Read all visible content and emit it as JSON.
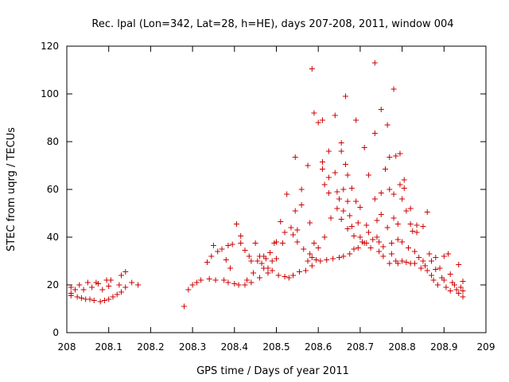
{
  "chart_data": {
    "type": "scatter",
    "title": "Rec. lpal (Lon=342, Lat=28, h=HE), days 207-208, 2011, window 004",
    "xlabel": "GPS time / Days of year 2011",
    "ylabel": "STEC from uqrg / TECUs",
    "xlim": [
      208,
      209
    ],
    "ylim": [
      0,
      120
    ],
    "x_ticks": [
      208,
      208.1,
      208.2,
      208.3,
      208.4,
      208.5,
      208.6,
      208.7,
      208.8,
      208.9,
      209
    ],
    "x_tick_labels": [
      "208",
      "208.1",
      "208.2",
      "208.3",
      "208.4",
      "208.5",
      "208.6",
      "208.7",
      "208.8",
      "208.9",
      "209"
    ],
    "y_ticks": [
      0,
      20,
      40,
      60,
      80,
      100,
      120
    ],
    "y_tick_labels": [
      "0",
      "20",
      "40",
      "60",
      "80",
      "100",
      "120"
    ],
    "marker": "+",
    "color": "#cc0000",
    "series": [
      {
        "name": "STEC",
        "points": [
          [
            208.01,
            19
          ],
          [
            208.01,
            16.5
          ],
          [
            208.01,
            15.5
          ],
          [
            208.02,
            18
          ],
          [
            208.025,
            15
          ],
          [
            208.03,
            20
          ],
          [
            208.035,
            14.5
          ],
          [
            208.04,
            18
          ],
          [
            208.045,
            14
          ],
          [
            208.05,
            21
          ],
          [
            208.055,
            14
          ],
          [
            208.06,
            19
          ],
          [
            208.065,
            13.5
          ],
          [
            208.07,
            21
          ],
          [
            208.075,
            20.5
          ],
          [
            208.08,
            13
          ],
          [
            208.085,
            18
          ],
          [
            208.09,
            13.5
          ],
          [
            208.095,
            22
          ],
          [
            208.1,
            14
          ],
          [
            208.1,
            19.5
          ],
          [
            208.105,
            22
          ],
          [
            208.11,
            15
          ],
          [
            208.12,
            16
          ],
          [
            208.125,
            20
          ],
          [
            208.13,
            17
          ],
          [
            208.13,
            24
          ],
          [
            208.14,
            19
          ],
          [
            208.14,
            25.5
          ],
          [
            208.155,
            21
          ],
          [
            208.17,
            20
          ],
          [
            208.28,
            11
          ],
          [
            208.29,
            18
          ],
          [
            208.3,
            20
          ],
          [
            208.31,
            21
          ],
          [
            208.32,
            22
          ],
          [
            208.335,
            29.5
          ],
          [
            208.34,
            22.5
          ],
          [
            208.345,
            32
          ],
          [
            208.35,
            36.5
          ],
          [
            208.355,
            22
          ],
          [
            208.36,
            34
          ],
          [
            208.37,
            35
          ],
          [
            208.375,
            22
          ],
          [
            208.38,
            30.5
          ],
          [
            208.385,
            21
          ],
          [
            208.385,
            36.5
          ],
          [
            208.39,
            27
          ],
          [
            208.395,
            37
          ],
          [
            208.4,
            20.5
          ],
          [
            208.405,
            45.5
          ],
          [
            208.41,
            20
          ],
          [
            208.415,
            37.5
          ],
          [
            208.415,
            40.5
          ],
          [
            208.425,
            34.5
          ],
          [
            208.425,
            20
          ],
          [
            208.43,
            22
          ],
          [
            208.435,
            32
          ],
          [
            208.44,
            30
          ],
          [
            208.44,
            21
          ],
          [
            208.445,
            25
          ],
          [
            208.45,
            37.5
          ],
          [
            208.455,
            30
          ],
          [
            208.46,
            32
          ],
          [
            208.46,
            23
          ],
          [
            208.465,
            29
          ],
          [
            208.47,
            32
          ],
          [
            208.47,
            27
          ],
          [
            208.475,
            31
          ],
          [
            208.48,
            27
          ],
          [
            208.48,
            25
          ],
          [
            208.485,
            33.5
          ],
          [
            208.49,
            30
          ],
          [
            208.49,
            26
          ],
          [
            208.495,
            37.5
          ],
          [
            208.5,
            38
          ],
          [
            208.5,
            31
          ],
          [
            208.505,
            24
          ],
          [
            208.51,
            46.5
          ],
          [
            208.515,
            37.5
          ],
          [
            208.52,
            42
          ],
          [
            208.52,
            23.5
          ],
          [
            208.525,
            58
          ],
          [
            208.53,
            23
          ],
          [
            208.535,
            44
          ],
          [
            208.54,
            41
          ],
          [
            208.54,
            24
          ],
          [
            208.545,
            51
          ],
          [
            208.545,
            73.5
          ],
          [
            208.55,
            38
          ],
          [
            208.55,
            43
          ],
          [
            208.555,
            25.5
          ],
          [
            208.56,
            60
          ],
          [
            208.56,
            53.5
          ],
          [
            208.565,
            35
          ],
          [
            208.57,
            26
          ],
          [
            208.575,
            30
          ],
          [
            208.575,
            70
          ],
          [
            208.58,
            46
          ],
          [
            208.58,
            33
          ],
          [
            208.585,
            28
          ],
          [
            208.585,
            31.5
          ],
          [
            208.585,
            110.5
          ],
          [
            208.59,
            92
          ],
          [
            208.59,
            37.5
          ],
          [
            208.595,
            30.5
          ],
          [
            208.6,
            88
          ],
          [
            208.6,
            35.5
          ],
          [
            208.605,
            30
          ],
          [
            208.61,
            71.5
          ],
          [
            208.61,
            89
          ],
          [
            208.61,
            68.5
          ],
          [
            208.615,
            40
          ],
          [
            208.615,
            62
          ],
          [
            208.62,
            30.5
          ],
          [
            208.625,
            76
          ],
          [
            208.625,
            58.5
          ],
          [
            208.625,
            65
          ],
          [
            208.63,
            48
          ],
          [
            208.635,
            31
          ],
          [
            208.64,
            91
          ],
          [
            208.64,
            67
          ],
          [
            208.645,
            52
          ],
          [
            208.645,
            59
          ],
          [
            208.65,
            56
          ],
          [
            208.65,
            31.5
          ],
          [
            208.655,
            79.5
          ],
          [
            208.655,
            76
          ],
          [
            208.655,
            47.5
          ],
          [
            208.66,
            60
          ],
          [
            208.66,
            51
          ],
          [
            208.66,
            32
          ],
          [
            208.665,
            99
          ],
          [
            208.665,
            70.5
          ],
          [
            208.67,
            66
          ],
          [
            208.67,
            55
          ],
          [
            208.67,
            43.5
          ],
          [
            208.675,
            49
          ],
          [
            208.675,
            33
          ],
          [
            208.68,
            60.5
          ],
          [
            208.68,
            44.5
          ],
          [
            208.685,
            35
          ],
          [
            208.685,
            40.5
          ],
          [
            208.69,
            89
          ],
          [
            208.69,
            55
          ],
          [
            208.695,
            46
          ],
          [
            208.695,
            35.5
          ],
          [
            208.7,
            52.5
          ],
          [
            208.7,
            40
          ],
          [
            208.705,
            38
          ],
          [
            208.705,
            38
          ],
          [
            208.71,
            77.5
          ],
          [
            208.71,
            37.5
          ],
          [
            208.715,
            45
          ],
          [
            208.715,
            37.5
          ],
          [
            208.72,
            66
          ],
          [
            208.72,
            42
          ],
          [
            208.725,
            35.5
          ],
          [
            208.73,
            39
          ],
          [
            208.735,
            113
          ],
          [
            208.735,
            83.5
          ],
          [
            208.735,
            56
          ],
          [
            208.74,
            47
          ],
          [
            208.74,
            40
          ],
          [
            208.745,
            34
          ],
          [
            208.745,
            38
          ],
          [
            208.75,
            93.5
          ],
          [
            208.75,
            58.5
          ],
          [
            208.75,
            49.5
          ],
          [
            208.755,
            36
          ],
          [
            208.755,
            32
          ],
          [
            208.76,
            68.5
          ],
          [
            208.765,
            44
          ],
          [
            208.765,
            87
          ],
          [
            208.77,
            73.5
          ],
          [
            208.77,
            60
          ],
          [
            208.77,
            29
          ],
          [
            208.775,
            37.5
          ],
          [
            208.775,
            33
          ],
          [
            208.78,
            102
          ],
          [
            208.78,
            58
          ],
          [
            208.78,
            48
          ],
          [
            208.785,
            74
          ],
          [
            208.785,
            30
          ],
          [
            208.79,
            45.5
          ],
          [
            208.79,
            39
          ],
          [
            208.79,
            29
          ],
          [
            208.795,
            75
          ],
          [
            208.795,
            62
          ],
          [
            208.8,
            56
          ],
          [
            208.8,
            38
          ],
          [
            208.8,
            30
          ],
          [
            208.805,
            64
          ],
          [
            208.805,
            60.5
          ],
          [
            208.81,
            51
          ],
          [
            208.81,
            29.5
          ],
          [
            208.815,
            35.5
          ],
          [
            208.82,
            45.5
          ],
          [
            208.82,
            52
          ],
          [
            208.82,
            29
          ],
          [
            208.825,
            42.5
          ],
          [
            208.83,
            34
          ],
          [
            208.83,
            29
          ],
          [
            208.835,
            45
          ],
          [
            208.835,
            42
          ],
          [
            208.84,
            31.5
          ],
          [
            208.845,
            27
          ],
          [
            208.85,
            44.5
          ],
          [
            208.85,
            30
          ],
          [
            208.855,
            28
          ],
          [
            208.86,
            50.5
          ],
          [
            208.86,
            26
          ],
          [
            208.865,
            33
          ],
          [
            208.87,
            24
          ],
          [
            208.87,
            30
          ],
          [
            208.875,
            22
          ],
          [
            208.88,
            31.5
          ],
          [
            208.88,
            26.5
          ],
          [
            208.885,
            20
          ],
          [
            208.89,
            27
          ],
          [
            208.895,
            23
          ],
          [
            208.9,
            22
          ],
          [
            208.9,
            32
          ],
          [
            208.905,
            19
          ],
          [
            208.91,
            33
          ],
          [
            208.915,
            24.5
          ],
          [
            208.915,
            17.5
          ],
          [
            208.92,
            21
          ],
          [
            208.925,
            20
          ],
          [
            208.93,
            18
          ],
          [
            208.935,
            28.5
          ],
          [
            208.935,
            16.5
          ],
          [
            208.94,
            19
          ],
          [
            208.945,
            21.5
          ],
          [
            208.945,
            17.5
          ],
          [
            208.945,
            15
          ]
        ]
      }
    ]
  }
}
